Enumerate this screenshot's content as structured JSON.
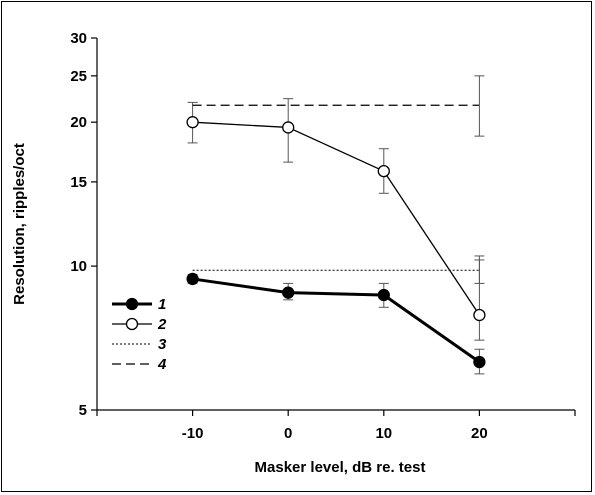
{
  "chart_data": {
    "type": "line",
    "title": "",
    "xlabel": "Masker level, dB re. test",
    "ylabel": "Resolution, ripples/oct",
    "x_categories": [
      "-10",
      "0",
      "10",
      "20"
    ],
    "x_values": [
      -10,
      0,
      10,
      20
    ],
    "xlim": [
      -20,
      30
    ],
    "ylim": [
      5,
      30
    ],
    "y_scale": "log",
    "y_ticks": [
      5,
      10,
      15,
      20,
      25,
      30
    ],
    "grid": false,
    "legend_position": "lower-left",
    "series": [
      {
        "name": "1",
        "style": "solid-thick",
        "marker": "filled-circle",
        "values": [
          9.4,
          8.8,
          8.7,
          6.3
        ],
        "err_low": [
          9.2,
          8.5,
          8.2,
          5.95
        ],
        "err_high": [
          9.6,
          9.2,
          9.2,
          6.7
        ]
      },
      {
        "name": "2",
        "style": "solid-thin",
        "marker": "open-circle",
        "values": [
          20.0,
          19.5,
          15.8,
          7.9
        ],
        "err_low": [
          18.1,
          16.5,
          14.2,
          7.0
        ],
        "err_high": [
          22.0,
          22.4,
          17.6,
          10.5
        ]
      },
      {
        "name": "3",
        "style": "dotted",
        "marker": "none",
        "x_range": [
          -10,
          20
        ],
        "value": 9.8,
        "err_low_at_end": 9.2,
        "err_high_at_end": 10.3
      },
      {
        "name": "4",
        "style": "dashed",
        "marker": "none",
        "x_range": [
          -10,
          20
        ],
        "value": 21.7,
        "err_low_at_end": 18.7,
        "err_high_at_end": 25.0
      }
    ]
  }
}
